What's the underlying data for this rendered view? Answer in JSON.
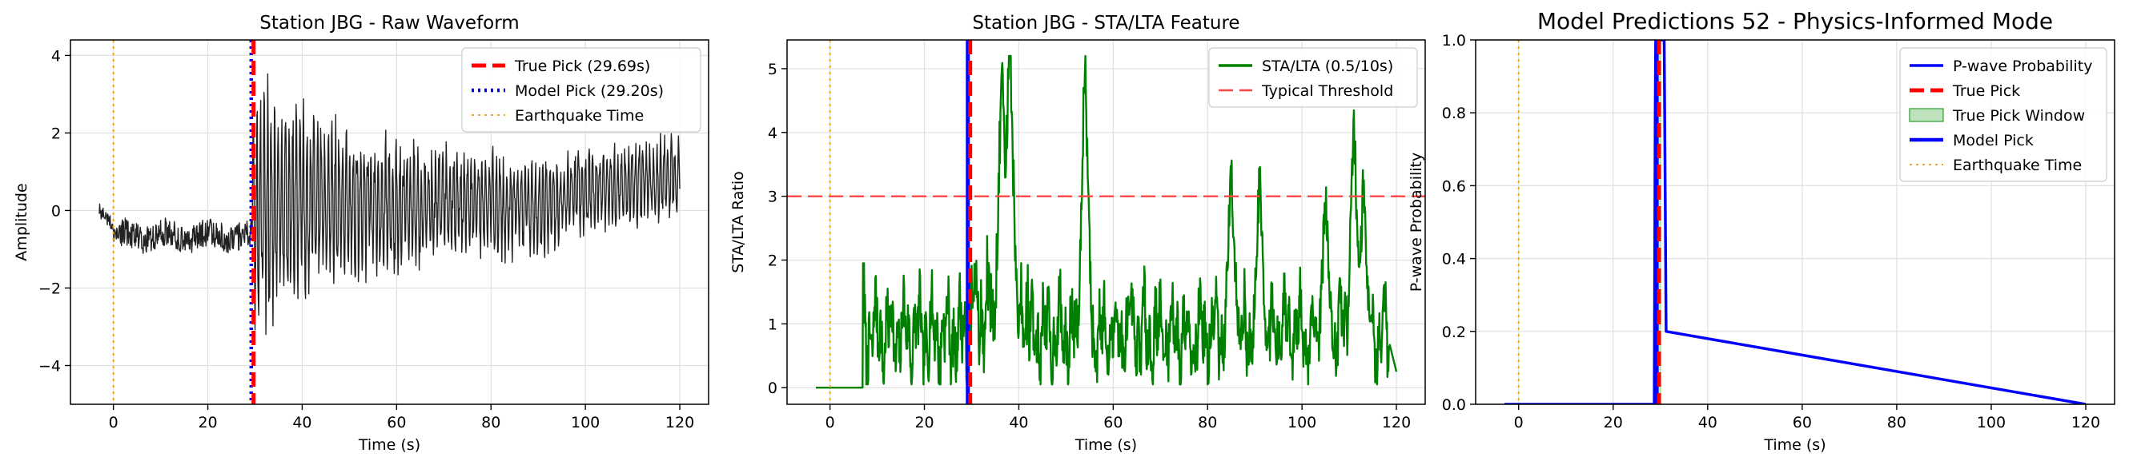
{
  "chart_data": [
    {
      "type": "line",
      "title": "Station JBG - Raw Waveform",
      "xlabel": "Time (s)",
      "ylabel": "Amplitude",
      "xlim": [
        -9.1,
        126.1
      ],
      "ylim": [
        -5.0,
        4.4
      ],
      "xticks": [
        0,
        20,
        40,
        60,
        80,
        100,
        120
      ],
      "xtick_labels": [
        "0",
        "20",
        "40",
        "60",
        "80",
        "100",
        "120"
      ],
      "yticks": [
        -4,
        -2,
        0,
        2,
        4
      ],
      "ytick_labels": [
        "−4",
        "−2",
        "0",
        "2",
        "4"
      ],
      "grid": true,
      "legend_position": "top-right",
      "series": [
        {
          "name": "",
          "role": "waveform",
          "color": "#222222",
          "x_range": [
            -3,
            120
          ],
          "amplitude_envelope": {
            "pre_arrival": 0.9,
            "peak": 4.0,
            "tail": 1.5
          }
        }
      ],
      "vlines": [
        {
          "name": "True Pick (29.69s)",
          "x": 29.69,
          "color": "#ff0000",
          "style": "dashed"
        },
        {
          "name": "Model Pick (29.20s)",
          "x": 29.2,
          "color": "#0000ff",
          "style": "dotted"
        },
        {
          "name": "Earthquake Time",
          "x": 0,
          "color": "#ffa500",
          "style": "dotted"
        }
      ],
      "hlines": []
    },
    {
      "type": "line",
      "title": "Station JBG - STA/LTA Feature",
      "xlabel": "Time (s)",
      "ylabel": "STA/LTA Ratio",
      "xlim": [
        -9.1,
        126.1
      ],
      "ylim": [
        -0.26,
        5.45
      ],
      "xticks": [
        0,
        20,
        40,
        60,
        80,
        100,
        120
      ],
      "xtick_labels": [
        "0",
        "20",
        "40",
        "60",
        "80",
        "100",
        "120"
      ],
      "yticks": [
        0,
        1,
        2,
        3,
        4,
        5
      ],
      "ytick_labels": [
        "0",
        "1",
        "2",
        "3",
        "4",
        "5"
      ],
      "grid": true,
      "legend_position": "top-right",
      "series": [
        {
          "name": "STA/LTA (0.5/10s)",
          "role": "stalta",
          "color": "#008000",
          "x_range": [
            -3,
            120
          ],
          "flat_until": 7,
          "max": 5.2
        }
      ],
      "vlines": [
        {
          "name": "",
          "x": 29.69,
          "color": "#ff0000",
          "style": "dashed"
        },
        {
          "name": "",
          "x": 29.2,
          "color": "#0000ff",
          "style": "solid"
        },
        {
          "name": "",
          "x": 0,
          "color": "#ffa500",
          "style": "dotted"
        }
      ],
      "hlines": [
        {
          "name": "Typical Threshold",
          "y": 3,
          "color": "#ff4444",
          "style": "dashed"
        }
      ]
    },
    {
      "type": "line",
      "title": "Model Predictions 52 - Physics-Informed Mode",
      "xlabel": "Time (s)",
      "ylabel": "P-wave Probability",
      "xlim": [
        -9.1,
        126.1
      ],
      "ylim": [
        0,
        1
      ],
      "xticks": [
        0,
        20,
        40,
        60,
        80,
        100,
        120
      ],
      "xtick_labels": [
        "0",
        "20",
        "40",
        "60",
        "80",
        "100",
        "120"
      ],
      "yticks": [
        0,
        0.2,
        0.4,
        0.6,
        0.8,
        1.0
      ],
      "ytick_labels": [
        "0.0",
        "0.2",
        "0.4",
        "0.6",
        "0.8",
        "1.0"
      ],
      "grid": true,
      "legend_position": "top-right",
      "series": [
        {
          "name": "P-wave Probability",
          "role": "probability",
          "color": "#0000ff",
          "x": [
            -3,
            28.7,
            28.9,
            29.0,
            29.2,
            29.4,
            30.6,
            30.8,
            31.0,
            31.2,
            120
          ],
          "y": [
            0,
            0,
            0.8,
            1.0,
            1.0,
            1.0,
            1.0,
            1.0,
            0.6,
            0.2,
            0
          ]
        }
      ],
      "vlines": [
        {
          "name": "True Pick",
          "x": 29.69,
          "color": "#ff0000",
          "style": "dashed"
        },
        {
          "name": "Model Pick",
          "x": 29.2,
          "color": "#0000ff",
          "style": "solid"
        },
        {
          "name": "Earthquake Time",
          "x": 0,
          "color": "#ffa500",
          "style": "dotted"
        }
      ],
      "spans": [
        {
          "name": "True Pick Window",
          "x0": 29.2,
          "x1": 30.2,
          "color": "#2ca02c"
        }
      ],
      "hlines": []
    }
  ]
}
